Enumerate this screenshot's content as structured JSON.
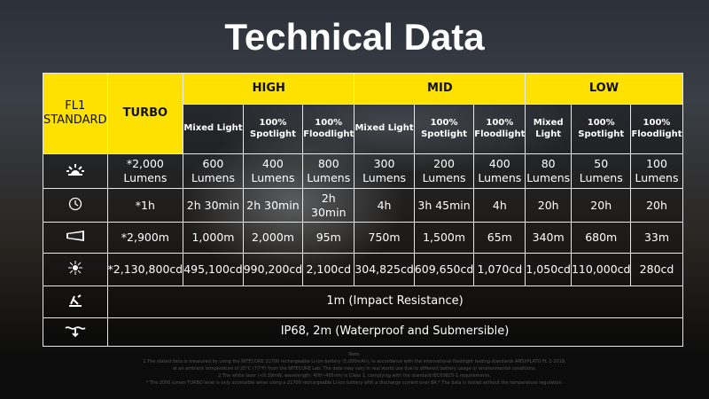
{
  "title": "Technical Data",
  "header": {
    "standard": "FL1 STANDARD",
    "turbo": "TURBO",
    "groups": [
      "HIGH",
      "MID",
      "LOW"
    ],
    "modes": [
      "Mixed Light",
      "100% Spotlight",
      "100% Floodlight",
      "Mixed Light",
      "100% Spotlight",
      "100% Floodlight",
      "Mixed Light",
      "100% Spotlight",
      "100% Floodlight"
    ]
  },
  "rows": [
    {
      "icon": "brightness-icon",
      "cells": [
        "*2,000 Lumens",
        "600 Lumens",
        "400 Lumens",
        "800 Lumens",
        "300 Lumens",
        "200 Lumens",
        "400 Lumens",
        "80 Lumens",
        "50 Lumens",
        "100 Lumens"
      ]
    },
    {
      "icon": "clock-icon",
      "cells": [
        "*1h",
        "2h 30min",
        "2h 30min",
        "2h 30min",
        "4h",
        "3h 45min",
        "4h",
        "20h",
        "20h",
        "20h"
      ]
    },
    {
      "icon": "beam-distance-icon",
      "cells": [
        "*2,900m",
        "1,000m",
        "2,000m",
        "95m",
        "750m",
        "1,500m",
        "65m",
        "340m",
        "680m",
        "33m"
      ]
    },
    {
      "icon": "intensity-icon",
      "cells": [
        "*2,130,800cd",
        "495,100cd",
        "990,200cd",
        "2,100cd",
        "304,825cd",
        "609,650cd",
        "1,070cd",
        "1,050cd",
        "110,000cd",
        "280cd"
      ]
    }
  ],
  "impact": {
    "icon": "impact-resistance-icon",
    "text": "1m (Impact Resistance)"
  },
  "waterproof": {
    "icon": "waterproof-icon",
    "text": "IP68, 2m (Waterproof and Submersible)"
  },
  "notes": [
    "Note:",
    "1.The stated data is measured by using the NITECORE 21700 rechargeable Li-ion battery (5,000mAh), in accordance with the international flashlight testing standards ANSI/PLATO FL 1-2019,",
    "at an ambient temperature of 25°C (77°F) from the NITECORE Lab. The data may vary in real world use due to different battery usage or environmental conditions.",
    "2.The white laser (<0.39mW, wavelength: 400~495nm) is Class 1, complying with the standard IEC60825-1 requirements.",
    "* The 2000 lumen TURBO level is only accessible when using a 21700 rechargeable Li-ion battery with a discharge current over 8A.* The data is tested without the temperature regulation."
  ],
  "colors": {
    "accent": "#ffe100"
  }
}
